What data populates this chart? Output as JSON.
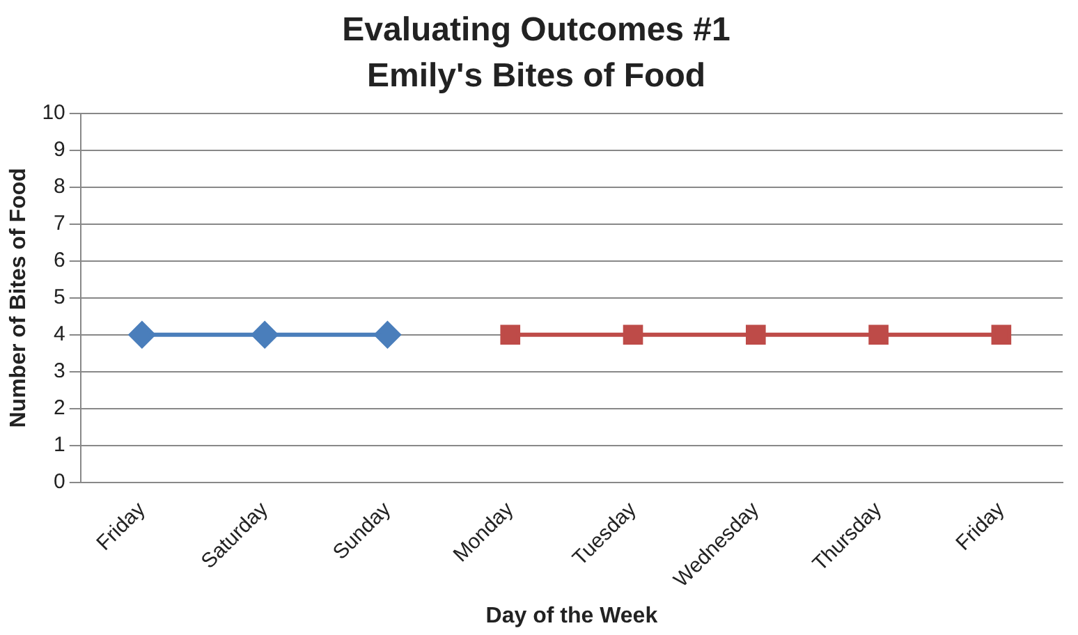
{
  "chart_data": {
    "type": "line",
    "title": "Evaluating Outcomes #1",
    "subtitle": "Emily's Bites of Food",
    "xlabel": "Day of the Week",
    "ylabel": "Number of Bites of Food",
    "categories": [
      "Friday",
      "Saturday",
      "Sunday",
      "Monday",
      "Tuesday",
      "Wednesday",
      "Thursday",
      "Friday"
    ],
    "series": [
      {
        "color": "#4a7ebb",
        "marker": "diamond",
        "values": [
          4,
          4,
          4,
          null,
          null,
          null,
          null,
          null
        ]
      },
      {
        "color": "#be4b48",
        "marker": "square",
        "values": [
          null,
          null,
          null,
          4,
          4,
          4,
          4,
          4
        ]
      }
    ],
    "ylim": [
      0,
      10
    ],
    "yticks": [
      0,
      1,
      2,
      3,
      4,
      5,
      6,
      7,
      8,
      9,
      10
    ],
    "grid": "y",
    "legend": false,
    "line_style": "solid"
  }
}
